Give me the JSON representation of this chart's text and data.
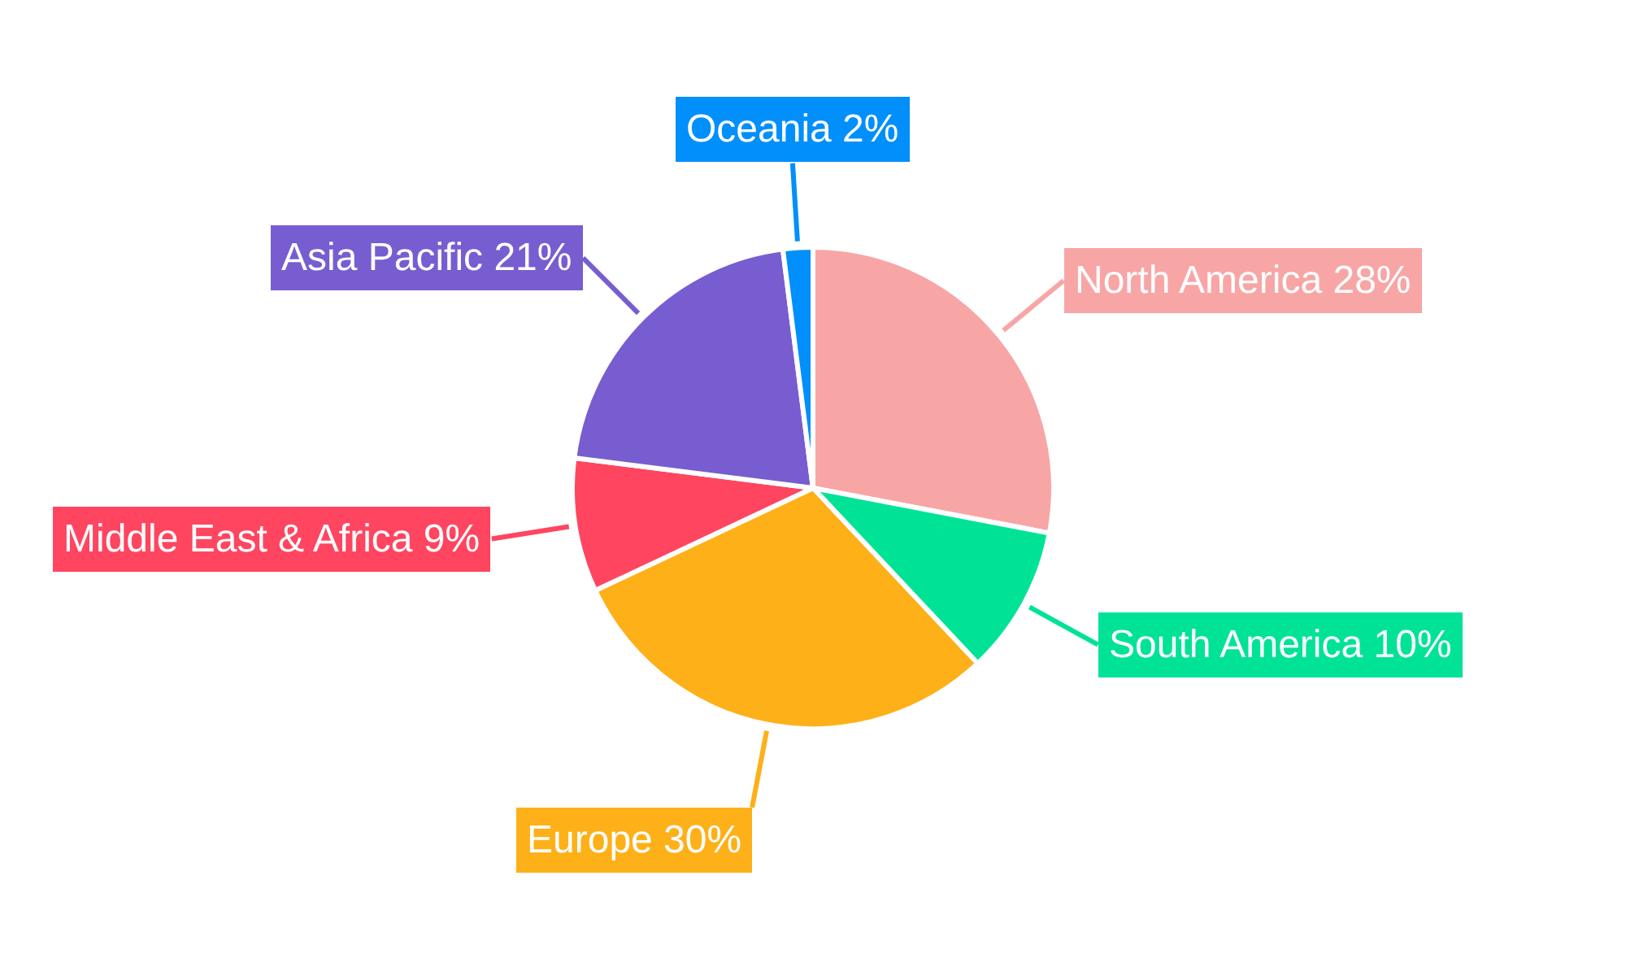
{
  "chart_data": {
    "type": "pie",
    "categories": [
      "North America",
      "South America",
      "Europe",
      "Middle East & Africa",
      "Asia Pacific",
      "Oceania"
    ],
    "values": [
      28,
      10,
      30,
      9,
      21,
      2
    ],
    "value_labels": [
      "28%",
      "10%",
      "30%",
      "9%",
      "21%",
      "2%"
    ],
    "colors": [
      "#f8a5a6",
      "#00e396",
      "#feb019",
      "#ff4560",
      "#775dd0",
      "#008ffb"
    ]
  }
}
